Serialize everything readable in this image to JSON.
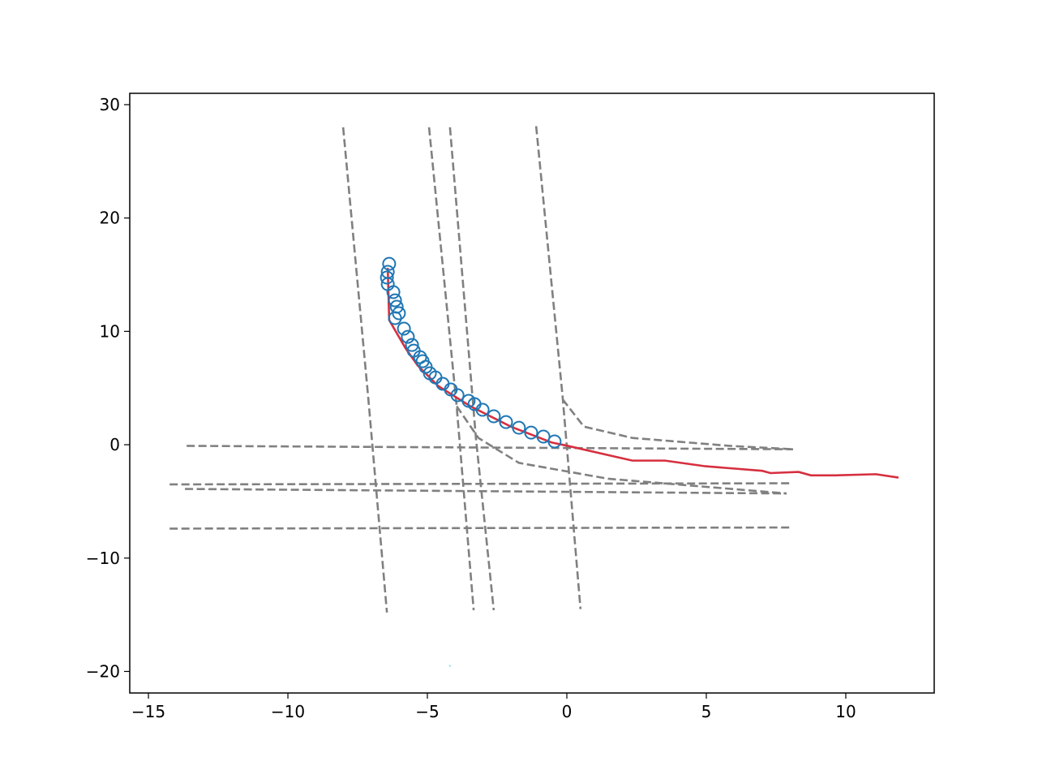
{
  "chart_data": {
    "type": "line",
    "xlim": [
      -15.67,
      13.17
    ],
    "ylim": [
      -21.9,
      31.0
    ],
    "xticks": [
      {
        "value": -15,
        "label": "−15"
      },
      {
        "value": -10,
        "label": "−10"
      },
      {
        "value": -5,
        "label": "−5"
      },
      0,
      5,
      10
    ],
    "yticks": [
      {
        "value": -20,
        "label": "−20"
      },
      {
        "value": -10,
        "label": "−10"
      },
      0,
      10,
      20,
      30
    ],
    "series": [
      {
        "color": "#808080",
        "style": "dashed",
        "x": [
          -8.02,
          -7.12,
          -6.45
        ],
        "values": [
          28.0,
          4.15,
          -14.8
        ]
      },
      {
        "color": "#808080",
        "style": "dashed",
        "x": [
          -4.94,
          -3.95,
          -3.34
        ],
        "values": [
          28.0,
          3.4,
          -14.6
        ]
      },
      {
        "color": "#808080",
        "style": "dashed",
        "x": [
          -4.19,
          -3.26,
          -2.62
        ],
        "values": [
          28.0,
          0.6,
          -14.6
        ]
      },
      {
        "color": "#808080",
        "style": "dashed",
        "x": [
          -1.1,
          -0.15,
          0.49
        ],
        "values": [
          28.1,
          4.2,
          -14.5
        ]
      },
      {
        "color": "#808080",
        "style": "dashed",
        "x": [
          -13.63,
          8.11
        ],
        "values": [
          -0.1,
          -0.4
        ]
      },
      {
        "color": "#808080",
        "style": "dashed",
        "x": [
          -14.24,
          8.02
        ],
        "values": [
          -3.5,
          -3.4
        ]
      },
      {
        "color": "#808080",
        "style": "dashed",
        "x": [
          -13.69,
          7.88
        ],
        "values": [
          -3.9,
          -4.3
        ]
      },
      {
        "color": "#808080",
        "style": "dashed",
        "x": [
          -14.24,
          8.02
        ],
        "values": [
          -7.4,
          -7.3
        ]
      },
      {
        "color": "#808080",
        "style": "dashed",
        "x": [
          -0.15,
          0.61,
          2.35,
          5.84,
          8.11
        ],
        "values": [
          4.0,
          1.6,
          0.6,
          -0.1,
          -0.4
        ]
      },
      {
        "color": "#808080",
        "style": "dashed",
        "x": [
          -3.95,
          -3.17,
          -1.72,
          1.48,
          7.88
        ],
        "values": [
          3.4,
          0.6,
          -1.6,
          -3.0,
          -4.3
        ]
      },
      {
        "color": "#d62f3f",
        "style": "solid",
        "x": [
          -6.42,
          -6.37,
          -5.78,
          -5.35,
          -4.62,
          -3.46,
          -2.01,
          -0.55,
          0.03,
          2.35,
          3.52,
          4.97,
          7.0,
          7.3,
          8.31,
          8.75,
          9.62,
          11.08,
          11.89
        ],
        "values": [
          15.6,
          11.0,
          8.5,
          7.0,
          5.2,
          3.4,
          1.6,
          0.2,
          -0.1,
          -1.4,
          -1.4,
          -1.9,
          -2.3,
          -2.5,
          -2.4,
          -2.7,
          -2.7,
          -2.6,
          -2.9
        ]
      },
      {
        "color": "#1f77b4",
        "style": "open-circle",
        "x": [
          -6.37,
          -6.42,
          -6.45,
          -6.42,
          -6.22,
          -6.16,
          -6.1,
          -6.02,
          -6.16,
          -5.84,
          -5.7,
          -5.55,
          -5.49,
          -5.26,
          -5.17,
          -5.06,
          -4.91,
          -4.71,
          -4.45,
          -4.16,
          -3.92,
          -3.52,
          -3.31,
          -3.02,
          -2.62,
          -2.18,
          -1.72,
          -1.28,
          -0.84,
          -0.44
        ],
        "values": [
          15.96,
          15.25,
          14.75,
          14.17,
          13.46,
          12.74,
          12.17,
          11.6,
          11.17,
          10.24,
          9.52,
          8.8,
          8.3,
          7.73,
          7.37,
          6.87,
          6.3,
          5.94,
          5.37,
          4.87,
          4.37,
          3.87,
          3.58,
          3.08,
          2.51,
          2.0,
          1.5,
          1.07,
          0.72,
          0.29
        ]
      },
      {
        "color": "#bfe8e8",
        "style": "dot",
        "x": [
          -4.19
        ],
        "values": [
          -19.5
        ]
      }
    ]
  }
}
